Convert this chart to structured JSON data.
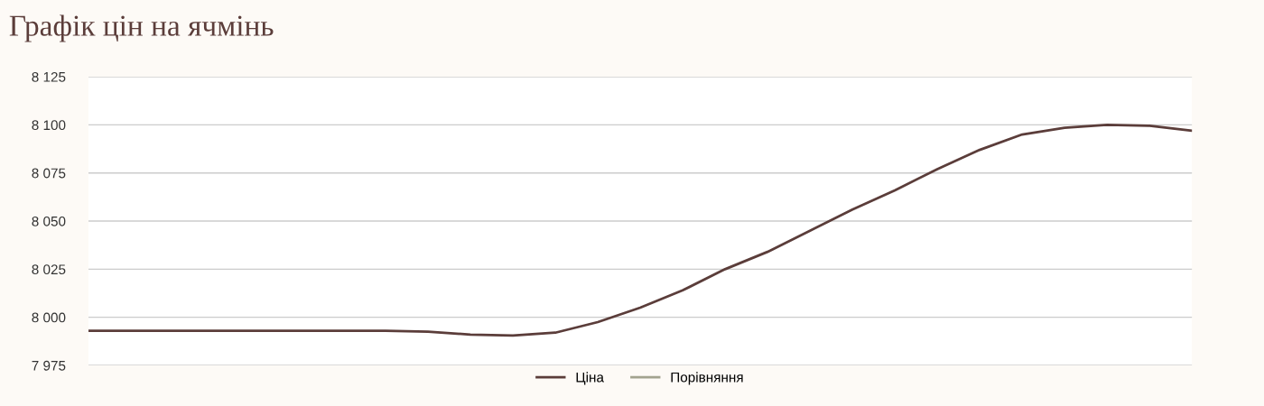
{
  "chart_data": {
    "type": "line",
    "title": "Графік цін на ячмінь",
    "categories": [
      null,
      null,
      null,
      null,
      null,
      null,
      null,
      null,
      null,
      null,
      null,
      null,
      null,
      null,
      null,
      null,
      null,
      null,
      null,
      null,
      null,
      null,
      null,
      null,
      null,
      null,
      null
    ],
    "series": [
      {
        "name": "Ціна",
        "color": "#5b3d3a",
        "values": [
          7993,
          7993,
          7993,
          7993,
          7993,
          7993,
          7993,
          7993,
          7992.5,
          7991,
          7990.5,
          7992,
          7997.5,
          8005,
          8014,
          8025,
          8034,
          8045,
          8056,
          8066,
          8077,
          8087,
          8095,
          8098.5,
          8100,
          8099.5,
          8097
        ]
      },
      {
        "name": "Порівняння",
        "color": "#a3a38f",
        "values": [
          null,
          null,
          null,
          null,
          null,
          null,
          null,
          null,
          null,
          null,
          null,
          null,
          null,
          null,
          null,
          null,
          null,
          null,
          null,
          null,
          null,
          null,
          null,
          null,
          null,
          null,
          null
        ]
      }
    ],
    "ylim": [
      7975,
      8125
    ],
    "yticks": [
      {
        "value": 7975,
        "label": "7 975"
      },
      {
        "value": 8000,
        "label": "8 000"
      },
      {
        "value": 8025,
        "label": "8 025"
      },
      {
        "value": 8050,
        "label": "8 050"
      },
      {
        "value": 8075,
        "label": "8 075"
      },
      {
        "value": 8100,
        "label": "8 100"
      },
      {
        "value": 8125,
        "label": "8 125"
      }
    ],
    "tick_labels": "y",
    "grid": "y",
    "legend": "bottom",
    "marker": "none",
    "line_style": "solid"
  }
}
